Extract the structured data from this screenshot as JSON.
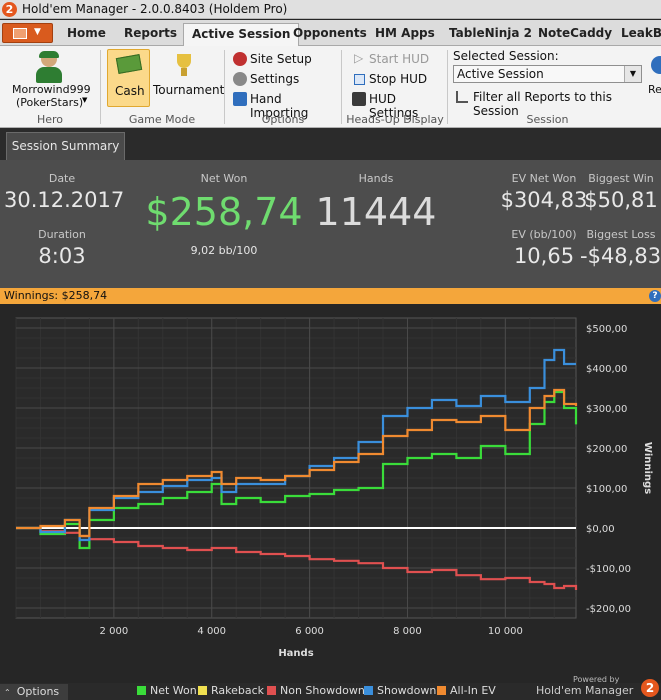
{
  "window": {
    "title": "Hold'em Manager - 2.0.0.8403 (Holdem Pro)",
    "logo_glyph": "2"
  },
  "tabs": [
    {
      "label": "Home"
    },
    {
      "label": "Reports"
    },
    {
      "label": "Active Session"
    },
    {
      "label": "Opponents"
    },
    {
      "label": "HM Apps"
    },
    {
      "label": "TableNinja 2"
    },
    {
      "label": "NoteCaddy"
    },
    {
      "label": "LeakBu"
    }
  ],
  "ribbon": {
    "hero": {
      "name": "Morrowind999",
      "site": "(PokerStars)",
      "group": "Hero"
    },
    "game_mode": {
      "cash": "Cash",
      "tournament": "Tournament",
      "group": "Game Mode"
    },
    "options": {
      "site_setup": "Site Setup",
      "settings": "Settings",
      "hand_importing": "Hand Importing",
      "group": "Options"
    },
    "hud": {
      "start": "Start HUD",
      "stop": "Stop HUD",
      "settings": "HUD Settings",
      "group": "Heads-Up Display"
    },
    "session": {
      "label": "Selected Session:",
      "value": "Active Session",
      "filter": "Filter all Reports to this Session",
      "group": "Session",
      "refresh": "Ref"
    }
  },
  "summary_tab": "Session Summary",
  "stats": {
    "date_label": "Date",
    "date": "30.12.2017",
    "duration_label": "Duration",
    "duration": "8:03",
    "net_won_label": "Net Won",
    "net_won": "$258,74",
    "bb100": "9,02 bb/100",
    "hands_label": "Hands",
    "hands": "11444",
    "ev_net_label": "EV Net Won",
    "ev_net": "$304,83",
    "ev_bb_label": "EV (bb/100)",
    "ev_bb": "10,65",
    "big_win_label": "Biggest Win",
    "big_win": "$50,81",
    "big_loss_label": "Biggest Loss",
    "big_loss": "-$48,83"
  },
  "winnings_bar": "Winnings:  $258,74",
  "colors": {
    "net_won": "#3adc3a",
    "rakeback": "#f0e050",
    "non_showdown": "#e05050",
    "showdown": "#3a8fdc",
    "all_in_ev": "#f08a30",
    "accent": "#f4a63b"
  },
  "chart_data": {
    "type": "line",
    "xlabel": "Hands",
    "ylabel": "Winnings",
    "xlim": [
      0,
      11444
    ],
    "ylim": [
      -200,
      500
    ],
    "x_ticks": [
      2000,
      4000,
      6000,
      8000,
      10000
    ],
    "x_tick_labels": [
      "2 000",
      "4 000",
      "6 000",
      "8 000",
      "10 000"
    ],
    "y_ticks": [
      500,
      400,
      300,
      200,
      100,
      0,
      -100,
      -200
    ],
    "y_tick_labels": [
      "$500,00",
      "$400,00",
      "$300,00",
      "$200,00",
      "$100,00",
      "$0,00",
      "-$100,00",
      "-$200,00"
    ],
    "grid": true,
    "legend_position": "bottom",
    "x": [
      0,
      500,
      1000,
      1300,
      1500,
      2000,
      2500,
      3000,
      3500,
      4000,
      4200,
      4500,
      5000,
      5500,
      6000,
      6500,
      7000,
      7500,
      8000,
      8500,
      9000,
      9500,
      10000,
      10500,
      10800,
      11000,
      11200,
      11444
    ],
    "series": [
      {
        "name": "Net Won",
        "color": "#3adc3a",
        "values": [
          0,
          -15,
          10,
          -50,
          20,
          50,
          60,
          75,
          90,
          110,
          60,
          75,
          65,
          80,
          85,
          95,
          100,
          160,
          175,
          185,
          175,
          205,
          185,
          260,
          315,
          340,
          300,
          259
        ]
      },
      {
        "name": "Rakeback",
        "color": "#f0e050",
        "values": [
          0,
          0,
          0,
          0,
          0,
          0,
          0,
          0,
          0,
          0,
          0,
          0,
          0,
          0,
          0,
          0,
          0,
          0,
          0,
          0,
          0,
          0,
          0,
          0,
          0,
          0,
          0,
          0
        ]
      },
      {
        "name": "Non Showdown",
        "color": "#e05050",
        "values": [
          0,
          -8,
          -12,
          -20,
          -28,
          -35,
          -45,
          -50,
          -55,
          -50,
          -50,
          -60,
          -65,
          -70,
          -78,
          -82,
          -88,
          -100,
          -110,
          -105,
          -118,
          -128,
          -125,
          -135,
          -140,
          -150,
          -145,
          -155
        ]
      },
      {
        "name": "Showdown",
        "color": "#3a8fdc",
        "values": [
          0,
          -10,
          20,
          -30,
          45,
          75,
          90,
          105,
          120,
          125,
          90,
          110,
          110,
          130,
          155,
          175,
          215,
          280,
          300,
          320,
          305,
          330,
          315,
          350,
          420,
          445,
          410,
          410
        ]
      },
      {
        "name": "All-In EV",
        "color": "#f08a30",
        "values": [
          0,
          5,
          20,
          -20,
          50,
          80,
          110,
          120,
          130,
          140,
          110,
          125,
          120,
          130,
          145,
          165,
          185,
          230,
          245,
          270,
          265,
          280,
          245,
          300,
          330,
          345,
          310,
          305
        ]
      }
    ]
  },
  "bottom": {
    "options": "Options",
    "powered": "Powered by",
    "brand": "Hold'em Manager",
    "logo_glyph": "2"
  }
}
